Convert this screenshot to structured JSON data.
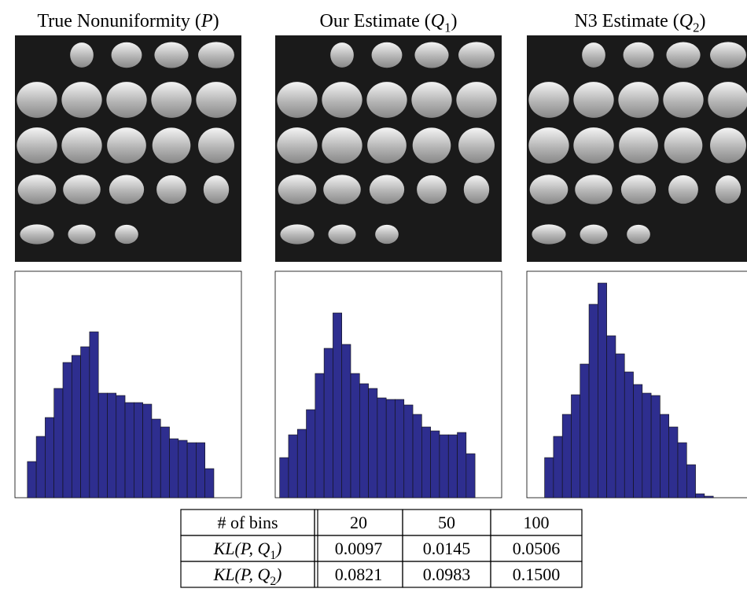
{
  "panels": [
    {
      "title": [
        {
          "text": "True Nonuniformity ("
        },
        {
          "text": "P",
          "style": "italic"
        },
        {
          "text": ")"
        }
      ]
    },
    {
      "title": [
        {
          "text": "Our Estimate ("
        },
        {
          "text": "Q",
          "style": "italic"
        },
        {
          "text": "1",
          "style": "sub"
        },
        {
          "text": ")"
        }
      ]
    },
    {
      "title": [
        {
          "text": "N3 Estimate ("
        },
        {
          "text": "Q",
          "style": "italic"
        },
        {
          "text": "2",
          "style": "sub"
        },
        {
          "text": ")"
        }
      ]
    }
  ],
  "chart_data": [
    {
      "type": "histogram",
      "color": "#2e2e8f",
      "xlim": [
        0,
        25.5
      ],
      "ylim": [
        0,
        288
      ],
      "bins": [
        1.4,
        2.4,
        3.4,
        4.4,
        5.4,
        6.4,
        7.4,
        8.4,
        9.4,
        10.4,
        11.4,
        12.4,
        13.4,
        14.4,
        15.4,
        16.4,
        17.4,
        18.4,
        19.4,
        20.4,
        21.4,
        22.4
      ],
      "values": [
        46,
        78,
        102,
        139,
        172,
        181,
        192,
        211,
        133,
        133,
        130,
        121,
        121,
        119,
        100,
        90,
        75,
        73,
        70,
        70,
        37
      ]
    },
    {
      "type": "histogram",
      "color": "#2e2e8f",
      "xlim": [
        0,
        25.5
      ],
      "ylim": [
        0,
        288
      ],
      "bins": [
        0.5,
        1.5,
        2.5,
        3.5,
        4.5,
        5.5,
        6.5,
        7.5,
        8.5,
        9.5,
        10.5,
        11.5,
        12.5,
        13.5,
        14.5,
        15.5,
        16.5,
        17.5,
        18.5,
        19.5,
        20.5,
        21.5,
        22.5
      ],
      "values": [
        51,
        80,
        87,
        112,
        158,
        190,
        235,
        195,
        158,
        145,
        139,
        127,
        125,
        125,
        118,
        106,
        90,
        85,
        80,
        80,
        83,
        56
      ]
    },
    {
      "type": "histogram",
      "color": "#2e2e8f",
      "xlim": [
        0,
        25.5
      ],
      "ylim": [
        0,
        288
      ],
      "bins": [
        2,
        3,
        4,
        5,
        6,
        7,
        8,
        9,
        10,
        11,
        12,
        13,
        14,
        15,
        16,
        17,
        18,
        19,
        20,
        21
      ],
      "values": [
        51,
        78,
        106,
        131,
        170,
        246,
        273,
        206,
        183,
        160,
        144,
        133,
        130,
        106,
        90,
        70,
        42,
        5,
        2
      ]
    }
  ],
  "table": {
    "rows": [
      [
        [
          {
            "text": "# of bins"
          }
        ],
        [
          {
            "text": "20"
          }
        ],
        [
          {
            "text": "50"
          }
        ],
        [
          {
            "text": "100"
          }
        ]
      ],
      [
        [
          {
            "text": "KL(P, Q",
            "style": "italic"
          },
          {
            "text": "1",
            "style": "sub"
          },
          {
            "text": ")",
            "style": "italic"
          }
        ],
        [
          {
            "text": "0.0097"
          }
        ],
        [
          {
            "text": "0.0145"
          }
        ],
        [
          {
            "text": "0.0506"
          }
        ]
      ],
      [
        [
          {
            "text": "KL(P, Q",
            "style": "italic"
          },
          {
            "text": "2",
            "style": "sub"
          },
          {
            "text": ")",
            "style": "italic"
          }
        ],
        [
          {
            "text": "0.0821"
          }
        ],
        [
          {
            "text": "0.0983"
          }
        ],
        [
          {
            "text": "0.1500"
          }
        ]
      ]
    ]
  }
}
